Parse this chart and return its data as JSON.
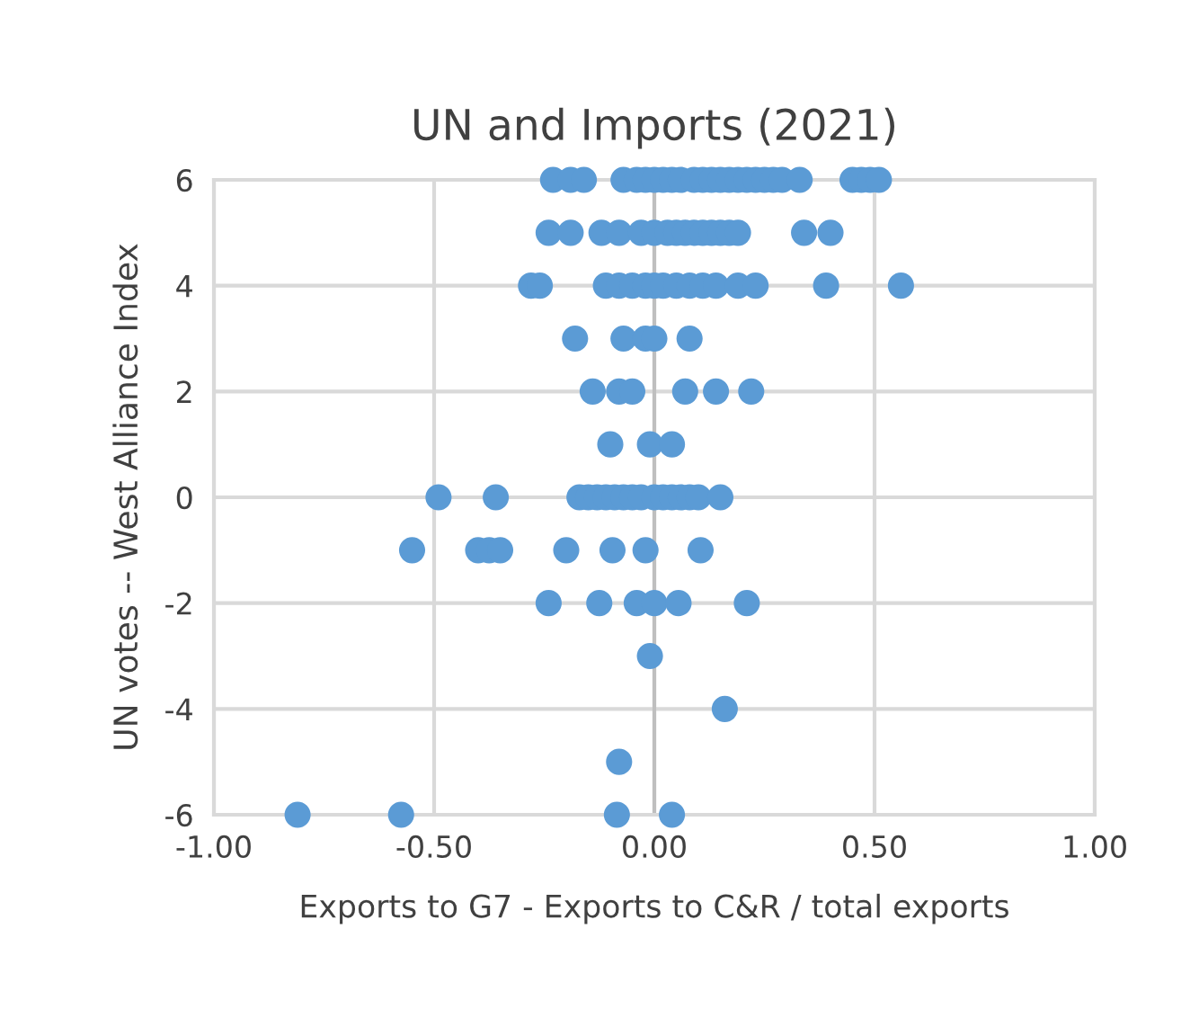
{
  "chart_data": {
    "type": "scatter",
    "title": "UN and Imports (2021)",
    "xlabel": "Exports to G7 - Exports to C&R / total exports",
    "ylabel": "UN votes -- West Alliance Index",
    "series": [
      {
        "color": "#5b9bd5",
        "x": [
          -0.23,
          -0.19,
          -0.16,
          -0.07,
          -0.04,
          -0.02,
          0,
          0.02,
          0.04,
          0.06,
          0.09,
          0.11,
          0.13,
          0.15,
          0.17,
          0.19,
          0.21,
          0.23,
          0.25,
          0.27,
          0.29,
          0.33,
          0.45,
          0.47,
          0.49,
          0.51,
          -0.24,
          -0.19,
          -0.12,
          -0.08,
          -0.03,
          0,
          0.03,
          0.05,
          0.07,
          0.09,
          0.11,
          0.13,
          0.15,
          0.17,
          0.19,
          0.34,
          0.4,
          -0.28,
          -0.26,
          -0.11,
          -0.08,
          -0.05,
          -0.02,
          0,
          0.02,
          0.05,
          0.08,
          0.11,
          0.14,
          0.19,
          0.23,
          0.39,
          0.56,
          -0.18,
          -0.07,
          -0.02,
          0,
          0.08,
          -0.14,
          -0.08,
          -0.05,
          0.07,
          0.14,
          0.22,
          -0.1,
          -0.01,
          0.04,
          -0.49,
          -0.36,
          -0.17,
          -0.15,
          -0.13,
          -0.11,
          -0.09,
          -0.07,
          -0.05,
          -0.03,
          0,
          0.02,
          0.04,
          0.06,
          0.08,
          0.1,
          0.15,
          -0.55,
          -0.4,
          -0.375,
          -0.35,
          -0.2,
          -0.095,
          -0.02,
          0.105,
          -0.24,
          -0.125,
          -0.04,
          0,
          0.055,
          0.21,
          -0.01,
          0.16,
          -0.08,
          -0.81,
          -0.575,
          -0.085,
          0.04
        ],
        "values": [
          6,
          6,
          6,
          6,
          6,
          6,
          6,
          6,
          6,
          6,
          6,
          6,
          6,
          6,
          6,
          6,
          6,
          6,
          6,
          6,
          6,
          6,
          6,
          6,
          6,
          6,
          5,
          5,
          5,
          5,
          5,
          5,
          5,
          5,
          5,
          5,
          5,
          5,
          5,
          5,
          5,
          5,
          5,
          4,
          4,
          4,
          4,
          4,
          4,
          4,
          4,
          4,
          4,
          4,
          4,
          4,
          4,
          4,
          4,
          3,
          3,
          3,
          3,
          3,
          2,
          2,
          2,
          2,
          2,
          2,
          1,
          1,
          1,
          0,
          0,
          0,
          0,
          0,
          0,
          0,
          0,
          0,
          0,
          0,
          0,
          0,
          0,
          0,
          0,
          0,
          -1,
          -1,
          -1,
          -1,
          -1,
          -1,
          -1,
          -1,
          -2,
          -2,
          -2,
          -2,
          -2,
          -2,
          -3,
          -4,
          -5,
          -6,
          -6,
          -6,
          -6
        ]
      }
    ],
    "xlim": [
      -1,
      1
    ],
    "xticks": [
      {
        "value": -1,
        "label": "-1.00"
      },
      {
        "value": -0.5,
        "label": "-0.50"
      },
      {
        "value": 0,
        "label": "0.00"
      },
      {
        "value": 0.5,
        "label": "0.50"
      },
      {
        "value": 1,
        "label": "1.00"
      }
    ],
    "ylim": [
      -6,
      6
    ],
    "yticks": [
      -6,
      -4,
      -2,
      0,
      2,
      4,
      6
    ],
    "grid": true,
    "marker": "circle"
  }
}
